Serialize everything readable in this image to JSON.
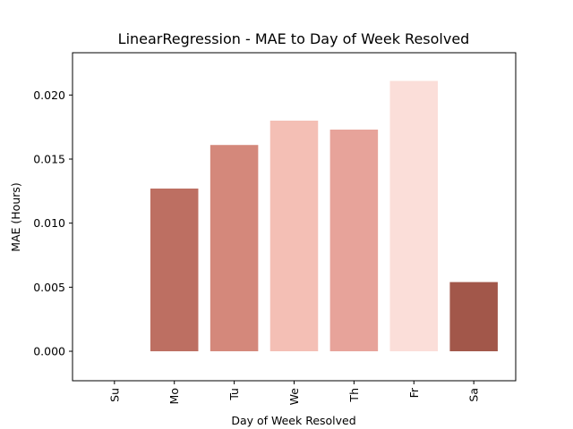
{
  "chart_data": {
    "type": "bar",
    "title": "LinearRegression - MAE to Day of Week Resolved",
    "xlabel": "Day of Week Resolved",
    "ylabel": "MAE (Hours)",
    "categories": [
      "Su",
      "Mo",
      "Tu",
      "We",
      "Th",
      "Fr",
      "Sa"
    ],
    "values": [
      0.0,
      0.0127,
      0.0161,
      0.018,
      0.0173,
      0.0211,
      0.0054
    ],
    "colors": [
      "#ffffff",
      "#bd6f62",
      "#d4887b",
      "#f4bfb5",
      "#e7a39a",
      "#fbded9",
      "#a2574a"
    ],
    "ylim": [
      -0.0023,
      0.0233
    ],
    "yticks": [
      0.0,
      0.005,
      0.01,
      0.015,
      0.02
    ],
    "ytick_labels": [
      "0.000",
      "0.005",
      "0.010",
      "0.015",
      "0.020"
    ],
    "grid": false,
    "legend": false
  }
}
